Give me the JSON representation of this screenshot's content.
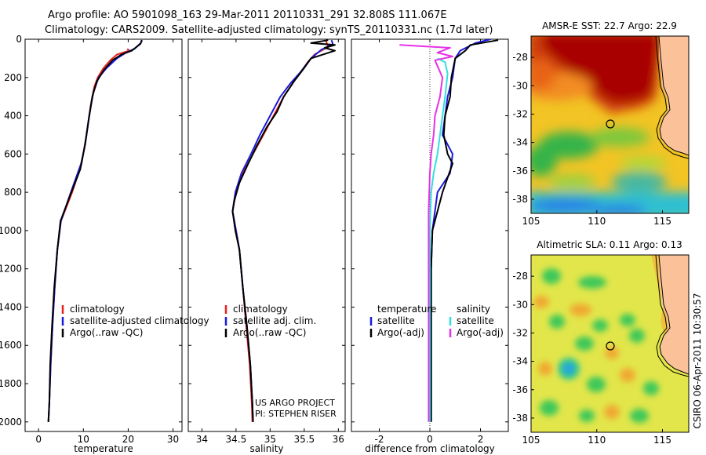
{
  "header": {
    "line1": "Argo profile: AO 5901098_163 29-Mar-2011 20110331_291 32.808S 111.067E",
    "line2": "Climatology: CARS2009. Satellite-adjusted climatology: synTS_20110331.nc (1.7d later)"
  },
  "colors": {
    "climatology": "#e8231f",
    "satellite": "#1a1adc",
    "argo": "#000000",
    "satellite_salinity": "#34dede",
    "argo_salinity": "#e632e6"
  },
  "chart_data": [
    {
      "id": "temperature",
      "type": "line",
      "xlabel": "temperature",
      "xlim": [
        -3,
        32
      ],
      "xticks": [
        0,
        10,
        20,
        30
      ],
      "ylim": [
        2050,
        0
      ],
      "yticks": [
        0,
        200,
        400,
        600,
        800,
        1000,
        1200,
        1400,
        1600,
        1800,
        2000
      ],
      "legend": [
        "climatology",
        "satellite-adjusted climatology",
        "Argo(..raw -QC)"
      ],
      "series": [
        {
          "name": "climatology",
          "color": "#e8231f",
          "points": [
            [
              19.8,
              50
            ],
            [
              20.2,
              60
            ],
            [
              17.5,
              80
            ],
            [
              16,
              110
            ],
            [
              14.5,
              150
            ],
            [
              13.2,
              200
            ],
            [
              12.4,
              250
            ],
            [
              11.6,
              350
            ],
            [
              10.7,
              500
            ],
            [
              9.6,
              650
            ],
            [
              7.5,
              800
            ],
            [
              5,
              950
            ],
            [
              4.2,
              1100
            ],
            [
              3.6,
              1300
            ],
            [
              3.1,
              1500
            ],
            [
              2.7,
              1700
            ],
            [
              2.4,
              1900
            ],
            [
              2.2,
              2000
            ]
          ]
        },
        {
          "name": "satellite-adjusted climatology",
          "color": "#1a1adc",
          "points": [
            [
              23.0,
              5
            ],
            [
              22.8,
              20
            ],
            [
              21.4,
              50
            ],
            [
              19.5,
              70
            ],
            [
              17.5,
              100
            ],
            [
              15.2,
              150
            ],
            [
              13.4,
              200
            ],
            [
              12.2,
              280
            ],
            [
              11.3,
              400
            ],
            [
              10.4,
              550
            ],
            [
              9.5,
              650
            ],
            [
              7.2,
              800
            ],
            [
              5,
              950
            ],
            [
              4.2,
              1100
            ],
            [
              3.6,
              1300
            ],
            [
              3.1,
              1500
            ],
            [
              2.7,
              1700
            ],
            [
              2.4,
              1900
            ],
            [
              2.2,
              2000
            ]
          ]
        },
        {
          "name": "Argo(..raw -QC)",
          "color": "#000000",
          "points": [
            [
              23.1,
              5
            ],
            [
              22.7,
              25
            ],
            [
              20.8,
              60
            ],
            [
              18.5,
              80
            ],
            [
              16.5,
              110
            ],
            [
              14.6,
              160
            ],
            [
              13,
              220
            ],
            [
              12,
              300
            ],
            [
              11.2,
              420
            ],
            [
              10.3,
              560
            ],
            [
              9.3,
              680
            ],
            [
              7,
              820
            ],
            [
              4.9,
              950
            ],
            [
              4.2,
              1100
            ],
            [
              3.5,
              1300
            ],
            [
              3,
              1500
            ],
            [
              2.6,
              1700
            ],
            [
              2.4,
              1900
            ],
            [
              2.2,
              2000
            ]
          ]
        }
      ]
    },
    {
      "id": "salinity",
      "type": "line",
      "xlabel": "salinity",
      "xlim": [
        33.8,
        36.1
      ],
      "xticks": [
        34,
        34.5,
        35,
        35.5,
        36
      ],
      "xticklabels": [
        "34",
        "34.5",
        "35",
        "35.5",
        "36"
      ],
      "ylim": [
        2050,
        0
      ],
      "yticks": [
        0,
        200,
        400,
        600,
        800,
        1000,
        1200,
        1400,
        1600,
        1800,
        2000
      ],
      "legend": [
        "climatology",
        "satellite adj. clim.",
        "Argo(..raw -QC)"
      ],
      "annotation": [
        "US ARGO PROJECT",
        "PI: STEPHEN RISER"
      ],
      "series": [
        {
          "name": "climatology",
          "color": "#e8231f",
          "points": [
            [
              35.82,
              10
            ],
            [
              35.85,
              40
            ],
            [
              35.65,
              80
            ],
            [
              35.55,
              120
            ],
            [
              35.45,
              170
            ],
            [
              35.35,
              220
            ],
            [
              35.2,
              300
            ],
            [
              35.05,
              400
            ],
            [
              34.9,
              500
            ],
            [
              34.75,
              600
            ],
            [
              34.6,
              700
            ],
            [
              34.5,
              800
            ],
            [
              34.45,
              900
            ],
            [
              34.5,
              1000
            ],
            [
              34.55,
              1100
            ],
            [
              34.6,
              1300
            ],
            [
              34.65,
              1500
            ],
            [
              34.7,
              1700
            ],
            [
              34.73,
              1900
            ],
            [
              34.74,
              2000
            ]
          ]
        },
        {
          "name": "satellite adj. clim.",
          "color": "#1a1adc",
          "points": [
            [
              35.9,
              5
            ],
            [
              35.92,
              25
            ],
            [
              35.75,
              55
            ],
            [
              35.6,
              100
            ],
            [
              35.45,
              170
            ],
            [
              35.3,
              230
            ],
            [
              35.15,
              300
            ],
            [
              35.0,
              400
            ],
            [
              34.85,
              500
            ],
            [
              34.72,
              600
            ],
            [
              34.58,
              700
            ],
            [
              34.49,
              800
            ],
            [
              34.45,
              900
            ],
            [
              34.5,
              1000
            ],
            [
              34.55,
              1100
            ],
            [
              34.6,
              1300
            ],
            [
              34.66,
              1500
            ],
            [
              34.71,
              1700
            ],
            [
              34.74,
              1900
            ],
            [
              34.75,
              2000
            ]
          ]
        },
        {
          "name": "Argo(..raw -QC)",
          "color": "#000000",
          "points": [
            [
              35.85,
              5
            ],
            [
              35.6,
              20
            ],
            [
              35.95,
              30
            ],
            [
              35.8,
              45
            ],
            [
              35.95,
              60
            ],
            [
              35.6,
              100
            ],
            [
              35.5,
              150
            ],
            [
              35.35,
              220
            ],
            [
              35.2,
              300
            ],
            [
              35.1,
              380
            ],
            [
              34.95,
              460
            ],
            [
              34.8,
              560
            ],
            [
              34.68,
              650
            ],
            [
              34.55,
              750
            ],
            [
              34.47,
              850
            ],
            [
              34.45,
              900
            ],
            [
              34.49,
              1000
            ],
            [
              34.55,
              1100
            ],
            [
              34.6,
              1300
            ],
            [
              34.66,
              1500
            ],
            [
              34.71,
              1700
            ],
            [
              34.74,
              1900
            ],
            [
              34.75,
              2000
            ]
          ]
        }
      ]
    },
    {
      "id": "difference",
      "type": "line",
      "xlabel": "difference from climatology",
      "xlim": [
        -3.1,
        3.1
      ],
      "xticks": [
        -2,
        0,
        2
      ],
      "ylim": [
        2050,
        0
      ],
      "yticks": [
        0,
        200,
        400,
        600,
        800,
        1000,
        1200,
        1400,
        1600,
        1800,
        2000
      ],
      "legend_left_title": "temperature",
      "legend_left": [
        "satellite",
        "Argo(-adj)"
      ],
      "legend_right_title": "salinity",
      "legend_right": [
        "satellite",
        "Argo(-adj)"
      ],
      "series": [
        {
          "name": "temperature satellite",
          "color": "#1a1adc",
          "points": [
            [
              2.4,
              0
            ],
            [
              1.8,
              20
            ],
            [
              1.2,
              60
            ],
            [
              1.0,
              100
            ],
            [
              0.9,
              200
            ],
            [
              0.7,
              300
            ],
            [
              0.6,
              400
            ],
            [
              0.5,
              500
            ],
            [
              0.9,
              600
            ],
            [
              0.8,
              700
            ],
            [
              0.3,
              800
            ],
            [
              0.1,
              1000
            ],
            [
              0.05,
              1200
            ],
            [
              0.05,
              1500
            ],
            [
              0.05,
              1800
            ],
            [
              0.05,
              2000
            ]
          ]
        },
        {
          "name": "temperature Argo(-adj)",
          "color": "#000000",
          "points": [
            [
              2.7,
              5
            ],
            [
              1.6,
              30
            ],
            [
              1.4,
              60
            ],
            [
              1.0,
              100
            ],
            [
              0.85,
              200
            ],
            [
              0.8,
              300
            ],
            [
              0.6,
              400
            ],
            [
              0.55,
              500
            ],
            [
              0.7,
              600
            ],
            [
              0.9,
              650
            ],
            [
              0.5,
              800
            ],
            [
              0.1,
              1000
            ],
            [
              0.05,
              1200
            ],
            [
              0.05,
              1500
            ],
            [
              0.05,
              1800
            ],
            [
              0.05,
              2000
            ]
          ]
        },
        {
          "name": "salinity satellite",
          "color": "#34dede",
          "points": [
            [
              0.3,
              100
            ],
            [
              0.6,
              120
            ],
            [
              0.7,
              180
            ],
            [
              0.6,
              300
            ],
            [
              0.55,
              350
            ],
            [
              0.45,
              450
            ],
            [
              0.3,
              600
            ],
            [
              0.15,
              700
            ],
            [
              0.05,
              800
            ],
            [
              0.0,
              1000
            ],
            [
              0.0,
              1200
            ],
            [
              0.0,
              1500
            ],
            [
              0.0,
              1800
            ],
            [
              0.0,
              2000
            ]
          ]
        },
        {
          "name": "salinity Argo(-adj)",
          "color": "#e632e6",
          "points": [
            [
              -1.2,
              30
            ],
            [
              0.8,
              45
            ],
            [
              0.3,
              70
            ],
            [
              0.9,
              90
            ],
            [
              0.2,
              110
            ],
            [
              0.5,
              200
            ],
            [
              0.4,
              300
            ],
            [
              0.2,
              400
            ],
            [
              0.15,
              500
            ],
            [
              0.05,
              600
            ],
            [
              0.0,
              700
            ],
            [
              -0.05,
              900
            ],
            [
              -0.05,
              1200
            ],
            [
              -0.05,
              1500
            ],
            [
              -0.05,
              1800
            ],
            [
              -0.05,
              2000
            ]
          ]
        }
      ]
    },
    {
      "id": "sst_map",
      "type": "heatmap",
      "title": "AMSR-E SST: 22.7 Argo: 22.9",
      "xlim": [
        105,
        117
      ],
      "xticks": [
        105,
        110,
        115
      ],
      "ylim": [
        -39,
        -26.5
      ],
      "yticks": [
        -28,
        -30,
        -32,
        -34,
        -36,
        -38
      ],
      "marker": [
        111.07,
        -32.81
      ]
    },
    {
      "id": "sla_map",
      "type": "heatmap",
      "title": "Altimetric SLA: 0.11 Argo: 0.13",
      "xlim": [
        105,
        117
      ],
      "xticks": [
        105,
        110,
        115
      ],
      "ylim": [
        -39,
        -26.5
      ],
      "yticks": [
        -28,
        -30,
        -32,
        -34,
        -36,
        -38
      ],
      "marker": [
        111.07,
        -32.81
      ]
    }
  ],
  "side_note": "CSIRO 06-Apr-2011 10:30:57"
}
